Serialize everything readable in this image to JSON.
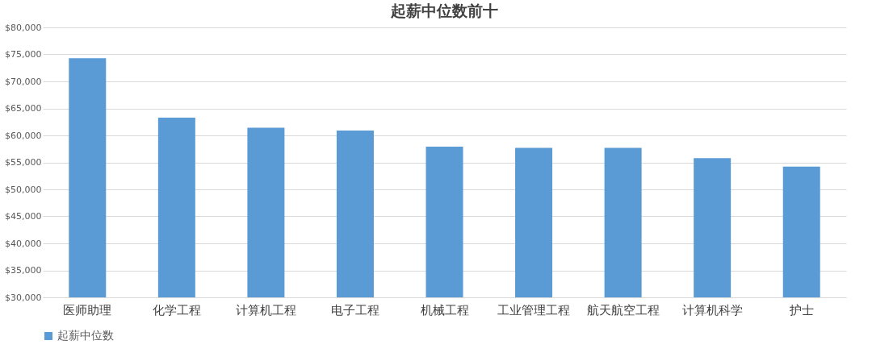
{
  "chart_data": {
    "type": "bar",
    "title": "起薪中位数前十",
    "categories": [
      "医师助理",
      "化学工程",
      "计算机工程",
      "电子工程",
      "机械工程",
      "工业管理工程",
      "航天航空工程",
      "计算机科学",
      "护士"
    ],
    "series": [
      {
        "name": "起薪中位数",
        "color": "#5b9bd5",
        "values": [
          74300,
          63300,
          61400,
          60900,
          57900,
          57700,
          57700,
          55800,
          54200
        ]
      }
    ],
    "ylim": [
      30000,
      80000
    ],
    "yticks": [
      {
        "value": 30000,
        "label": "$30,000"
      },
      {
        "value": 35000,
        "label": "$35,000"
      },
      {
        "value": 40000,
        "label": "$40,000"
      },
      {
        "value": 45000,
        "label": "$45,000"
      },
      {
        "value": 50000,
        "label": "$50,000"
      },
      {
        "value": 55000,
        "label": "$55,000"
      },
      {
        "value": 60000,
        "label": "$60,000"
      },
      {
        "value": 65000,
        "label": "$65,000"
      },
      {
        "value": 70000,
        "label": "$70,000"
      },
      {
        "value": 75000,
        "label": "$75,000"
      },
      {
        "value": 80000,
        "label": "$80,000"
      }
    ],
    "grid": "y",
    "legend": "bottom"
  }
}
